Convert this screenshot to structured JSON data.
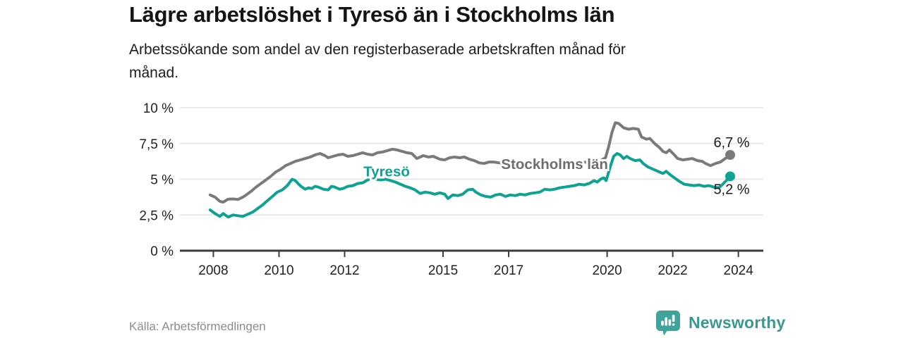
{
  "header": {
    "title": "Lägre arbetslöshet i Tyresö än i Stockholms län",
    "subtitle_lines": [
      "Arbetssökande som andel av den registerbaserade arbetskraften månad för",
      "månad."
    ]
  },
  "chart_data": {
    "type": "line",
    "title": "Lägre arbetslöshet i Tyresö än i Stockholms län",
    "xlabel": "",
    "ylabel": "",
    "grid": true,
    "legend_position": "inline-labels",
    "xlim": [
      2006.98,
      2024.76
    ],
    "ylim": [
      0,
      10
    ],
    "x_ticks": [
      2008,
      2010,
      2012,
      2015,
      2017,
      2020,
      2022,
      2024
    ],
    "x_tick_labels": [
      "2008",
      "2010",
      "2012",
      "2015",
      "2017",
      "2020",
      "2022",
      "2024"
    ],
    "y_ticks": [
      0,
      2.5,
      5,
      7.5,
      10
    ],
    "y_tick_labels": [
      "0 %",
      "2,5 %",
      "5 %",
      "7,5 %",
      "10 %"
    ],
    "colors": {
      "stockholm_gray": "#7a7a7a",
      "tyreso_teal": "#0ea293",
      "gridline": "#e3e3e3",
      "axis": "#3c3c3c",
      "end_label_text": "#1a1a1a"
    },
    "series": [
      {
        "name": "Stockholms län",
        "color": "#7a7a7a",
        "label_color": "#6e6e6e",
        "end_label": "6,7 %",
        "end_value": 6.7,
        "end_label_side": "above",
        "label_anchor": {
          "x": 2018.4,
          "y": 6.06
        },
        "points": [
          [
            2007.9,
            3.9
          ],
          [
            2008.05,
            3.75
          ],
          [
            2008.2,
            3.45
          ],
          [
            2008.3,
            3.4
          ],
          [
            2008.45,
            3.6
          ],
          [
            2008.6,
            3.62
          ],
          [
            2008.75,
            3.58
          ],
          [
            2008.9,
            3.75
          ],
          [
            2009.0,
            3.9
          ],
          [
            2009.15,
            4.15
          ],
          [
            2009.3,
            4.45
          ],
          [
            2009.45,
            4.7
          ],
          [
            2009.6,
            4.95
          ],
          [
            2009.75,
            5.2
          ],
          [
            2009.9,
            5.5
          ],
          [
            2010.05,
            5.7
          ],
          [
            2010.2,
            5.95
          ],
          [
            2010.35,
            6.1
          ],
          [
            2010.5,
            6.25
          ],
          [
            2010.65,
            6.35
          ],
          [
            2010.8,
            6.45
          ],
          [
            2010.95,
            6.55
          ],
          [
            2011.1,
            6.7
          ],
          [
            2011.25,
            6.8
          ],
          [
            2011.4,
            6.65
          ],
          [
            2011.5,
            6.5
          ],
          [
            2011.65,
            6.6
          ],
          [
            2011.8,
            6.7
          ],
          [
            2011.95,
            6.75
          ],
          [
            2012.1,
            6.6
          ],
          [
            2012.25,
            6.65
          ],
          [
            2012.4,
            6.75
          ],
          [
            2012.55,
            6.85
          ],
          [
            2012.7,
            6.75
          ],
          [
            2012.85,
            6.7
          ],
          [
            2013.0,
            6.85
          ],
          [
            2013.15,
            6.9
          ],
          [
            2013.3,
            7.0
          ],
          [
            2013.45,
            7.1
          ],
          [
            2013.6,
            7.05
          ],
          [
            2013.75,
            6.95
          ],
          [
            2013.9,
            6.85
          ],
          [
            2014.05,
            6.8
          ],
          [
            2014.2,
            6.45
          ],
          [
            2014.4,
            6.65
          ],
          [
            2014.55,
            6.55
          ],
          [
            2014.7,
            6.6
          ],
          [
            2014.9,
            6.4
          ],
          [
            2015.05,
            6.35
          ],
          [
            2015.2,
            6.5
          ],
          [
            2015.35,
            6.55
          ],
          [
            2015.5,
            6.5
          ],
          [
            2015.65,
            6.55
          ],
          [
            2015.8,
            6.4
          ],
          [
            2015.95,
            6.3
          ],
          [
            2016.1,
            6.15
          ],
          [
            2016.25,
            6.1
          ],
          [
            2016.4,
            6.2
          ],
          [
            2016.55,
            6.2
          ],
          [
            2016.7,
            6.15
          ],
          [
            2016.85,
            6.1
          ],
          [
            2017.0,
            6.15
          ],
          [
            2017.2,
            6.1
          ],
          [
            2017.4,
            6.05
          ],
          [
            2017.6,
            6.0
          ],
          [
            2017.8,
            6.0
          ],
          [
            2018.0,
            5.95
          ],
          [
            2018.2,
            5.9
          ],
          [
            2018.4,
            5.95
          ],
          [
            2018.6,
            6.0
          ],
          [
            2018.8,
            6.05
          ],
          [
            2019.0,
            6.1
          ],
          [
            2019.2,
            6.15
          ],
          [
            2019.4,
            6.2
          ],
          [
            2019.6,
            6.25
          ],
          [
            2019.8,
            6.3
          ],
          [
            2019.95,
            6.5
          ],
          [
            2020.05,
            7.3
          ],
          [
            2020.15,
            8.3
          ],
          [
            2020.25,
            8.95
          ],
          [
            2020.35,
            8.9
          ],
          [
            2020.5,
            8.6
          ],
          [
            2020.65,
            8.5
          ],
          [
            2020.8,
            8.55
          ],
          [
            2020.95,
            8.5
          ],
          [
            2021.05,
            7.95
          ],
          [
            2021.2,
            7.8
          ],
          [
            2021.3,
            7.85
          ],
          [
            2021.45,
            7.5
          ],
          [
            2021.6,
            7.2
          ],
          [
            2021.7,
            6.95
          ],
          [
            2021.8,
            6.85
          ],
          [
            2021.9,
            7.05
          ],
          [
            2022.05,
            6.7
          ],
          [
            2022.15,
            6.45
          ],
          [
            2022.3,
            6.35
          ],
          [
            2022.45,
            6.4
          ],
          [
            2022.6,
            6.45
          ],
          [
            2022.75,
            6.3
          ],
          [
            2022.9,
            6.25
          ],
          [
            2023.0,
            6.1
          ],
          [
            2023.15,
            5.95
          ],
          [
            2023.3,
            6.1
          ],
          [
            2023.45,
            6.2
          ],
          [
            2023.6,
            6.45
          ],
          [
            2023.75,
            6.7
          ]
        ]
      },
      {
        "name": "Tyresö",
        "color": "#0ea293",
        "label_color": "#0ea293",
        "end_label": "5,2 %",
        "end_value": 5.2,
        "end_label_side": "below",
        "label_anchor": {
          "x": 2013.28,
          "y": 5.55
        },
        "points": [
          [
            2007.9,
            2.85
          ],
          [
            2008.05,
            2.6
          ],
          [
            2008.2,
            2.4
          ],
          [
            2008.3,
            2.6
          ],
          [
            2008.45,
            2.35
          ],
          [
            2008.6,
            2.5
          ],
          [
            2008.75,
            2.45
          ],
          [
            2008.9,
            2.4
          ],
          [
            2009.05,
            2.55
          ],
          [
            2009.2,
            2.7
          ],
          [
            2009.35,
            2.95
          ],
          [
            2009.5,
            3.2
          ],
          [
            2009.65,
            3.5
          ],
          [
            2009.8,
            3.8
          ],
          [
            2009.95,
            4.1
          ],
          [
            2010.1,
            4.25
          ],
          [
            2010.25,
            4.55
          ],
          [
            2010.4,
            5.0
          ],
          [
            2010.5,
            4.9
          ],
          [
            2010.6,
            4.65
          ],
          [
            2010.7,
            4.45
          ],
          [
            2010.8,
            4.3
          ],
          [
            2010.9,
            4.4
          ],
          [
            2011.0,
            4.35
          ],
          [
            2011.1,
            4.5
          ],
          [
            2011.2,
            4.45
          ],
          [
            2011.35,
            4.3
          ],
          [
            2011.5,
            4.25
          ],
          [
            2011.6,
            4.5
          ],
          [
            2011.7,
            4.45
          ],
          [
            2011.85,
            4.3
          ],
          [
            2011.95,
            4.35
          ],
          [
            2012.1,
            4.5
          ],
          [
            2012.25,
            4.55
          ],
          [
            2012.4,
            4.7
          ],
          [
            2012.55,
            4.75
          ],
          [
            2012.7,
            4.95
          ],
          [
            2012.8,
            5.05
          ],
          [
            2012.95,
            5.0
          ],
          [
            2013.1,
            4.95
          ],
          [
            2013.25,
            5.0
          ],
          [
            2013.4,
            4.9
          ],
          [
            2013.55,
            4.8
          ],
          [
            2013.7,
            4.65
          ],
          [
            2013.85,
            4.5
          ],
          [
            2014.0,
            4.4
          ],
          [
            2014.15,
            4.25
          ],
          [
            2014.3,
            4.0
          ],
          [
            2014.45,
            4.1
          ],
          [
            2014.6,
            4.05
          ],
          [
            2014.75,
            3.95
          ],
          [
            2014.9,
            4.05
          ],
          [
            2015.05,
            3.95
          ],
          [
            2015.15,
            3.65
          ],
          [
            2015.3,
            3.9
          ],
          [
            2015.45,
            3.85
          ],
          [
            2015.6,
            3.95
          ],
          [
            2015.75,
            4.25
          ],
          [
            2015.9,
            4.3
          ],
          [
            2016.0,
            4.1
          ],
          [
            2016.15,
            3.9
          ],
          [
            2016.3,
            3.8
          ],
          [
            2016.45,
            3.75
          ],
          [
            2016.6,
            3.9
          ],
          [
            2016.75,
            3.95
          ],
          [
            2016.9,
            3.8
          ],
          [
            2017.05,
            3.9
          ],
          [
            2017.2,
            3.85
          ],
          [
            2017.35,
            3.95
          ],
          [
            2017.5,
            3.9
          ],
          [
            2017.65,
            4.0
          ],
          [
            2017.8,
            4.05
          ],
          [
            2017.95,
            4.1
          ],
          [
            2018.1,
            4.3
          ],
          [
            2018.25,
            4.25
          ],
          [
            2018.4,
            4.3
          ],
          [
            2018.55,
            4.4
          ],
          [
            2018.7,
            4.45
          ],
          [
            2018.85,
            4.5
          ],
          [
            2019.0,
            4.55
          ],
          [
            2019.15,
            4.65
          ],
          [
            2019.3,
            4.6
          ],
          [
            2019.45,
            4.7
          ],
          [
            2019.6,
            4.9
          ],
          [
            2019.7,
            4.8
          ],
          [
            2019.8,
            5.0
          ],
          [
            2019.9,
            5.1
          ],
          [
            2019.97,
            4.9
          ],
          [
            2020.1,
            5.9
          ],
          [
            2020.2,
            6.6
          ],
          [
            2020.3,
            6.8
          ],
          [
            2020.4,
            6.7
          ],
          [
            2020.5,
            6.45
          ],
          [
            2020.6,
            6.6
          ],
          [
            2020.7,
            6.45
          ],
          [
            2020.85,
            6.3
          ],
          [
            2021.0,
            6.35
          ],
          [
            2021.1,
            6.1
          ],
          [
            2021.25,
            5.85
          ],
          [
            2021.4,
            5.7
          ],
          [
            2021.55,
            5.55
          ],
          [
            2021.7,
            5.4
          ],
          [
            2021.8,
            5.55
          ],
          [
            2021.9,
            5.35
          ],
          [
            2022.05,
            5.1
          ],
          [
            2022.2,
            4.85
          ],
          [
            2022.35,
            4.65
          ],
          [
            2022.5,
            4.6
          ],
          [
            2022.65,
            4.55
          ],
          [
            2022.8,
            4.6
          ],
          [
            2022.95,
            4.5
          ],
          [
            2023.1,
            4.55
          ],
          [
            2023.25,
            4.45
          ],
          [
            2023.4,
            4.4
          ],
          [
            2023.5,
            4.6
          ],
          [
            2023.65,
            4.95
          ],
          [
            2023.75,
            5.2
          ]
        ]
      }
    ]
  },
  "footer": {
    "source": "Källa: Arbetsförmedlingen",
    "brand": "Newsworthy"
  }
}
